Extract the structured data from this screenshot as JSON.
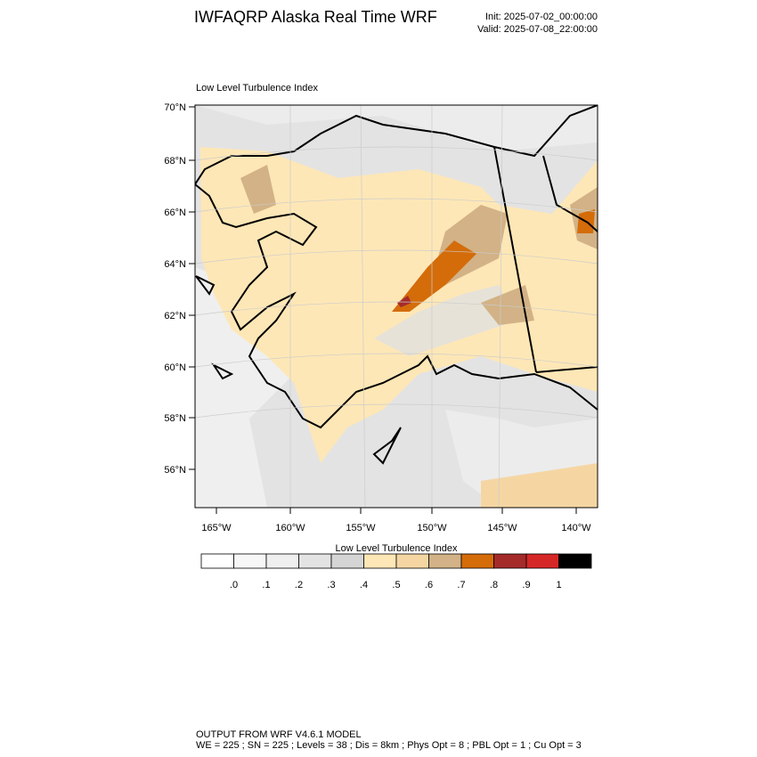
{
  "header": {
    "title": "IWFAQRP Alaska Real Time WRF",
    "init": "Init: 2025-07-02_00:00:00",
    "valid": "Valid: 2025-07-08_22:00:00"
  },
  "map": {
    "title": "Low Level Turbulence Index",
    "lat_labels": [
      "70°N",
      "68°N",
      "66°N",
      "64°N",
      "62°N",
      "60°N",
      "58°N",
      "56°N"
    ],
    "lon_labels": [
      "165°W",
      "160°W",
      "155°W",
      "150°W",
      "145°W",
      "140°W"
    ]
  },
  "colorbar": {
    "title": "Low Level Turbulence Index",
    "colors": [
      "#ffffff",
      "#f7f7f7",
      "#efefef",
      "#e3e3e3",
      "#d5d5d5",
      "#fee7b6",
      "#f5d6a3",
      "#d2b286",
      "#d46c0a",
      "#a52a2a",
      "#d62728",
      "#000000"
    ],
    "labels": [
      ".0",
      ".1",
      ".2",
      ".3",
      ".4",
      ".5",
      ".6",
      ".7",
      ".8",
      ".9",
      "1"
    ]
  },
  "footer": {
    "line1": "OUTPUT FROM WRF V4.6.1 MODEL",
    "line2": "WE = 225 ; SN = 225 ; Levels = 38 ; Dis = 8km ; Phys Opt = 8 ; PBL Opt = 1 ; Cu Opt = 3"
  }
}
